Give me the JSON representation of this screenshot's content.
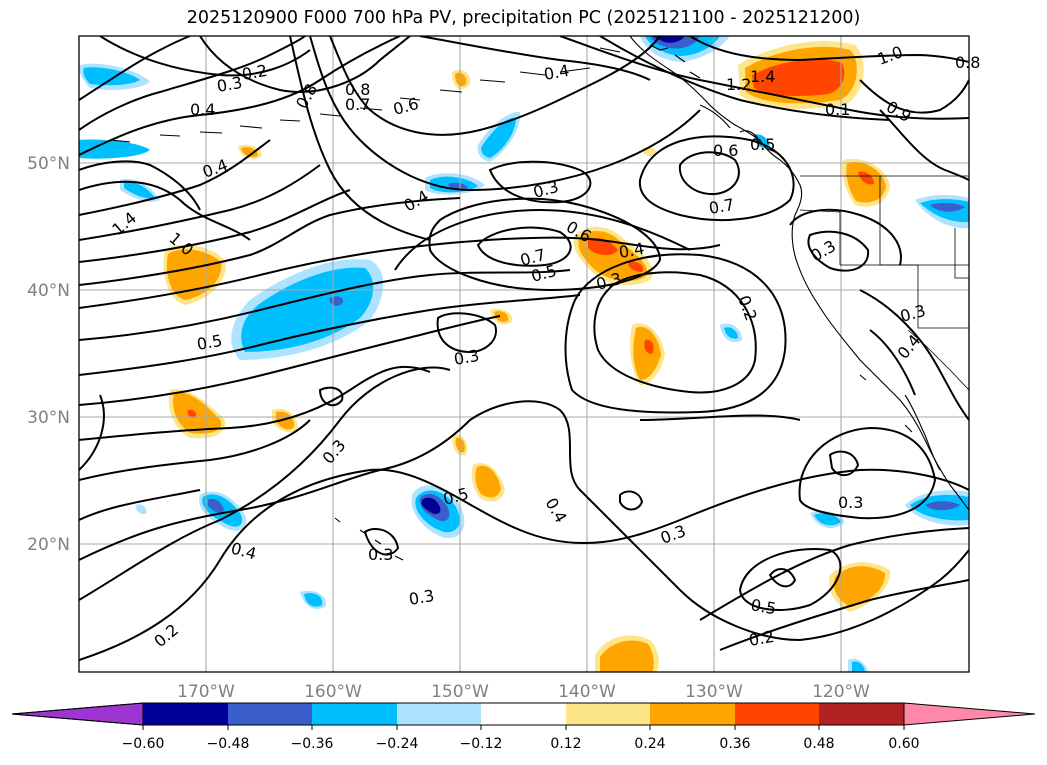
{
  "title": "2025120900 F000 700 hPa PV, precipitation PC (2025121100 - 2025121200)",
  "lon_labels": [
    "170°W",
    "160°W",
    "150°W",
    "140°W",
    "130°W",
    "120°W"
  ],
  "lat_labels": [
    "50°N",
    "40°N",
    "30°N",
    "20°N"
  ],
  "colorbar": {
    "colors": [
      "#9c35d1",
      "#000096",
      "#3a5fcd",
      "#00bfff",
      "#aee3ff",
      "#ffffff",
      "#fde68a",
      "#ffa500",
      "#ff4500",
      "#b22222",
      "#ff88aa"
    ],
    "tick_labels": [
      "−0.60",
      "−0.48",
      "−0.36",
      "−0.24",
      "−0.12",
      "0.12",
      "0.24",
      "0.36",
      "0.48",
      "0.60"
    ]
  },
  "contour_labels": [
    "0.2",
    "0.3",
    "0.4",
    "0.8",
    "0.7",
    "0.6",
    "0.4",
    "1.2",
    "1.4",
    "1.0",
    "0.8",
    "0.4",
    "0.4",
    "1.4",
    "1.0",
    "0.3",
    "0.6",
    "0.7",
    "0.5",
    "0.4",
    "0.3",
    "0.6",
    "0.5",
    "0.7",
    "0.1",
    "0.5",
    "0.3",
    "0.2",
    "0.3",
    "0.3",
    "0.4",
    "0.3",
    "0.5",
    "0.4",
    "0.3",
    "0.3",
    "0.4",
    "0.3",
    "0.5",
    "0.2",
    "0.3",
    "0.2",
    "0.8",
    "0.9"
  ]
}
